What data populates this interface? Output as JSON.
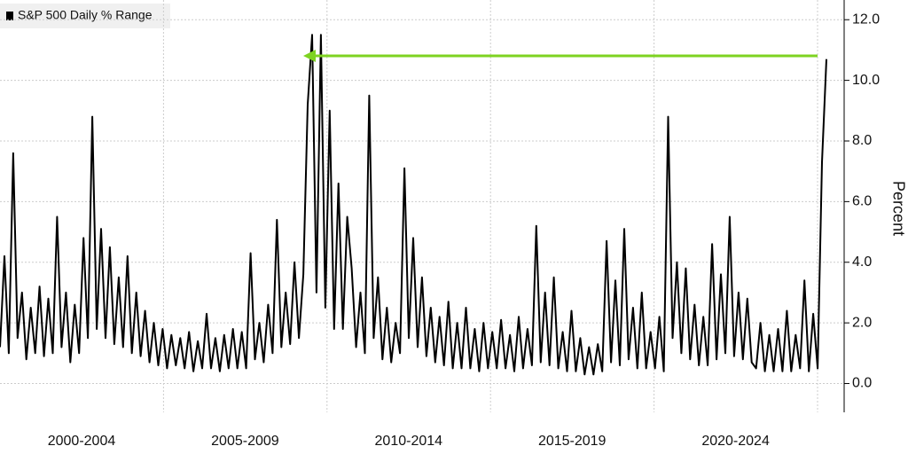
{
  "chart_data": {
    "type": "line",
    "series": [
      {
        "name": "S&P 500 Daily % Range",
        "color": "#000000",
        "values": [
          1.2,
          4.2,
          1.0,
          7.6,
          1.5,
          3.0,
          0.8,
          2.5,
          1.0,
          3.2,
          0.9,
          2.8,
          1.0,
          5.5,
          1.2,
          3.0,
          0.7,
          2.6,
          1.0,
          4.8,
          1.5,
          8.8,
          1.8,
          5.1,
          1.5,
          4.5,
          1.3,
          3.5,
          1.2,
          4.2,
          1.0,
          3.0,
          0.9,
          2.4,
          0.7,
          2.0,
          0.6,
          1.8,
          0.5,
          1.6,
          0.6,
          1.5,
          0.5,
          1.7,
          0.4,
          1.4,
          0.5,
          2.3,
          0.5,
          1.5,
          0.4,
          1.6,
          0.5,
          1.8,
          0.5,
          1.7,
          0.5,
          4.3,
          0.8,
          2.0,
          0.7,
          2.6,
          1.0,
          5.4,
          1.2,
          3.0,
          1.3,
          4.0,
          1.5,
          3.6,
          9.2,
          11.5,
          3.0,
          11.5,
          2.5,
          9.0,
          1.8,
          6.6,
          1.8,
          5.5,
          3.8,
          1.2,
          3.0,
          1.0,
          9.5,
          1.5,
          3.5,
          0.8,
          2.5,
          0.7,
          2.0,
          1.0,
          7.1,
          1.5,
          4.8,
          1.2,
          3.5,
          0.9,
          2.5,
          0.7,
          2.2,
          0.6,
          2.7,
          0.5,
          2.0,
          0.5,
          2.5,
          0.5,
          1.8,
          0.4,
          2.0,
          0.5,
          1.7,
          0.5,
          2.1,
          0.5,
          1.6,
          0.4,
          2.2,
          0.5,
          1.8,
          0.6,
          5.2,
          0.7,
          3.0,
          0.6,
          3.5,
          0.5,
          1.7,
          0.4,
          2.4,
          0.4,
          1.5,
          0.3,
          1.2,
          0.3,
          1.3,
          0.4,
          4.7,
          0.7,
          3.4,
          0.6,
          5.1,
          0.8,
          2.5,
          0.5,
          3.0,
          0.5,
          1.7,
          0.5,
          2.2,
          0.4,
          8.8,
          1.5,
          4.0,
          1.0,
          3.8,
          0.8,
          2.6,
          0.6,
          2.2,
          0.6,
          4.6,
          0.8,
          3.6,
          1.0,
          5.5,
          0.9,
          3.0,
          0.8,
          2.8,
          0.7,
          0.5,
          2.0,
          0.4,
          1.6,
          0.4,
          1.8,
          0.4,
          2.4,
          0.4,
          1.6,
          0.5,
          3.4,
          0.4,
          2.3,
          0.5,
          7.3,
          10.7
        ]
      }
    ],
    "x_labels": [
      "2000-2004",
      "2005-2009",
      "2010-2014",
      "2015-2019",
      "2020-2024"
    ],
    "y_label": "Percent",
    "ylim": [
      -0.95,
      12.65
    ],
    "yticks": [
      {
        "value": 0,
        "label": "0.0"
      },
      {
        "value": 2,
        "label": "2.0"
      },
      {
        "value": 4,
        "label": "4.0"
      },
      {
        "value": 6,
        "label": "6.0"
      },
      {
        "value": 8,
        "label": "8.0"
      },
      {
        "value": 10,
        "label": "10.0"
      },
      {
        "value": 12,
        "label": "12.0"
      }
    ],
    "grid": true
  }
}
